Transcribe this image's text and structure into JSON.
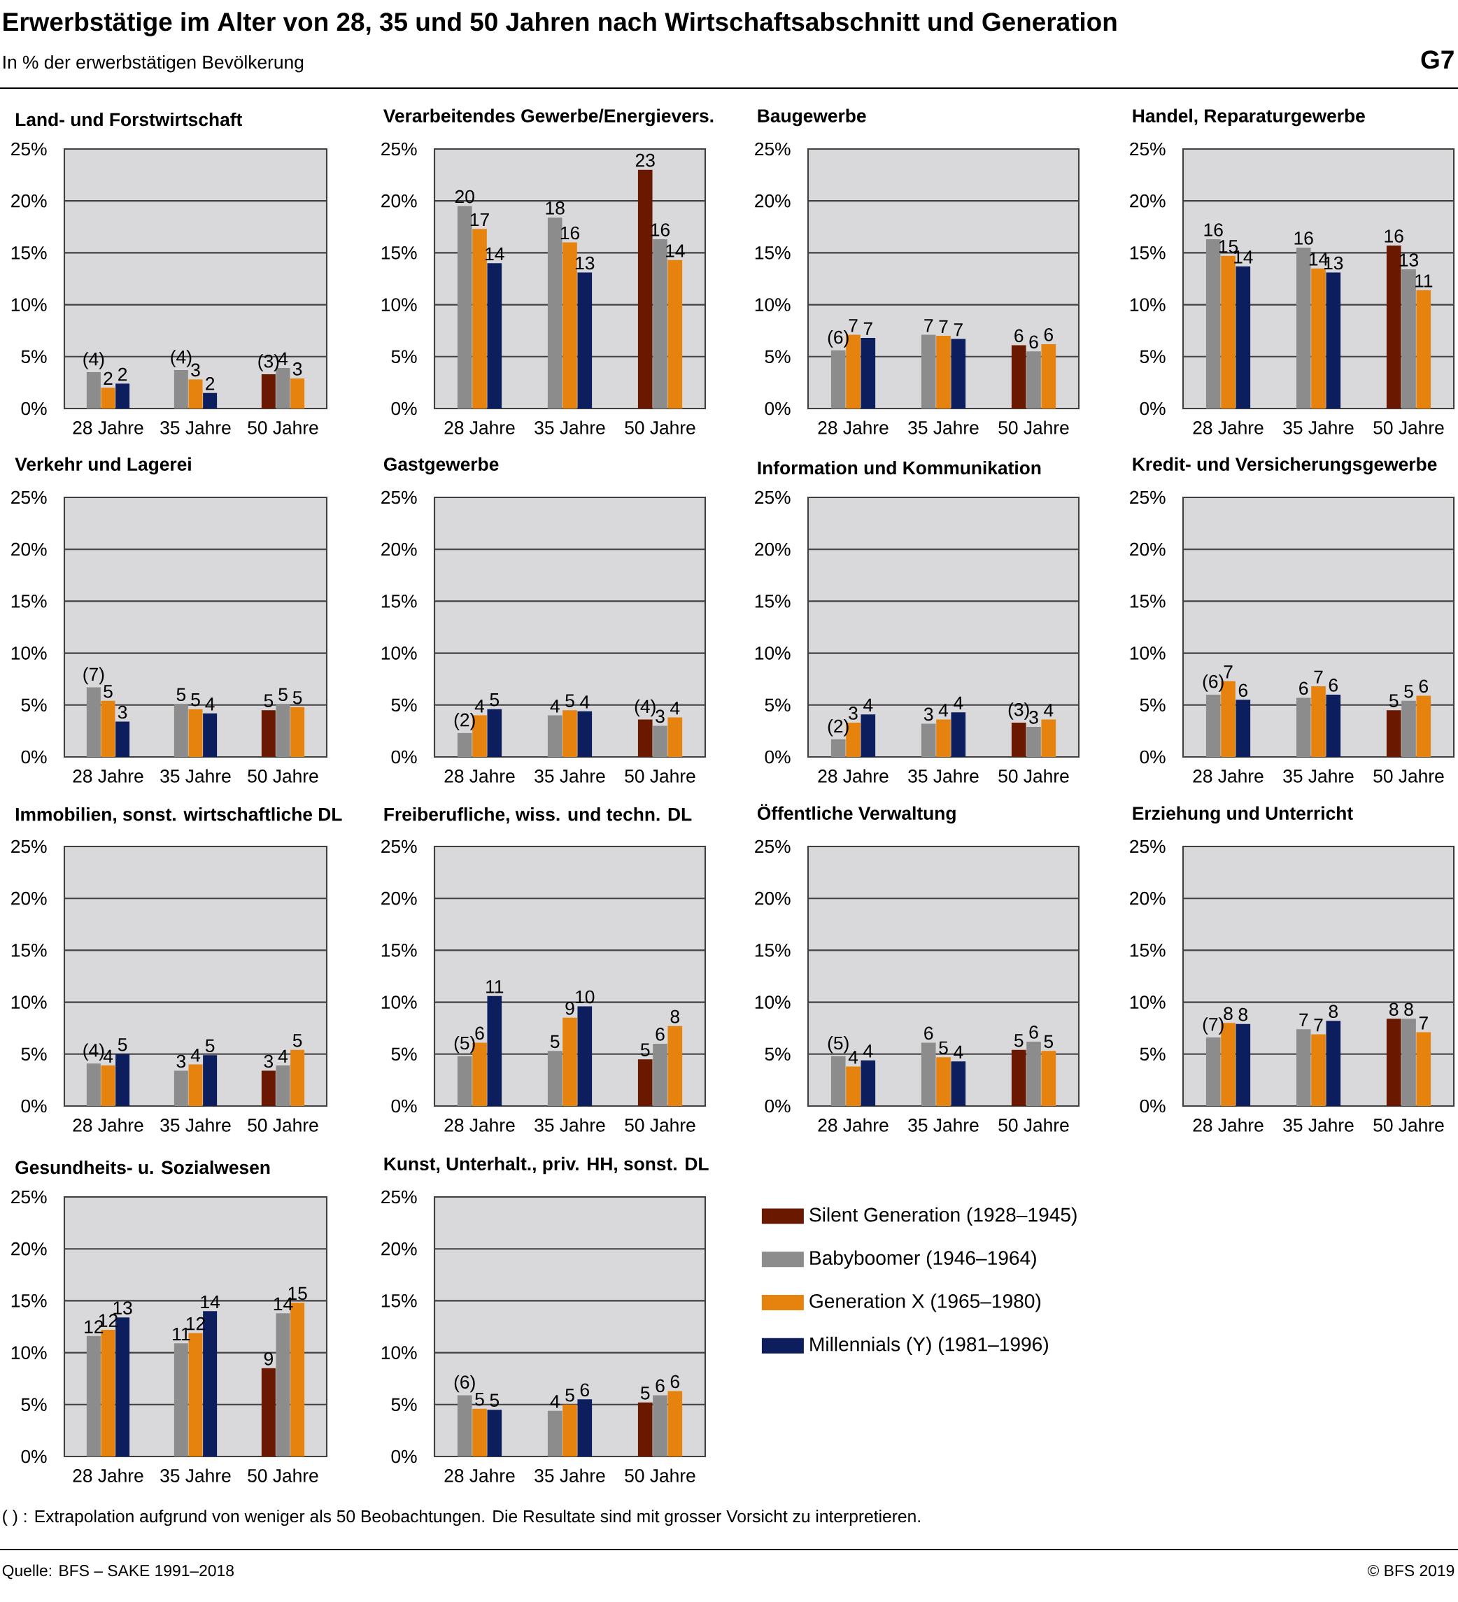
{
  "chart_data": [
    {
      "type": "other",
      "title": "Erwerbstätige im Alter von 28, 35 und 50 Jahren nach Wirtschaftsabschnitt und Generation",
      "subtitle": "In % der erwerbstätigen Bevölkerung",
      "annotations": [
        "G7",
        "( ) : Extrapolation aufgrund von weniger als 50 Beobachtungen. Die Resultate sind mit grosser Vorsicht zu interpretieren.",
        "Quelle: BFS – SAKE 1991–2018",
        "© BFS 2019"
      ]
    },
    {
      "type": "bar",
      "title": "Land- und Forstwirtschaft",
      "categories": [
        "28 Jahre",
        "35 Jahre",
        "50 Jahre"
      ],
      "ylim": [
        0,
        25
      ],
      "yticks": [
        {
          "value": 0,
          "label": "0%"
        },
        {
          "value": 5,
          "label": "5%"
        },
        {
          "value": 10,
          "label": "10%"
        },
        {
          "value": 15,
          "label": "15%"
        },
        {
          "value": 20,
          "label": "20%"
        },
        {
          "value": 25,
          "label": "25%"
        }
      ],
      "grid": "y",
      "series": [
        {
          "color": "#6b1800",
          "values": [
            null,
            null,
            3.3
          ],
          "value_labels": [
            null,
            null,
            "(3)"
          ]
        },
        {
          "color": "#8c8c8c",
          "values": [
            3.5,
            3.7,
            3.9
          ],
          "value_labels": [
            "(4)",
            "(4)",
            "4"
          ]
        },
        {
          "color": "#e6820e",
          "values": [
            2.0,
            2.8,
            2.9
          ],
          "value_labels": [
            "2",
            "3",
            "3"
          ]
        },
        {
          "color": "#0c1e5e",
          "values": [
            2.4,
            1.5,
            null
          ],
          "value_labels": [
            "2",
            "2",
            null
          ]
        }
      ]
    },
    {
      "type": "bar",
      "title": "Verarbeitendes Gewerbe/Energievers.",
      "categories": [
        "28 Jahre",
        "35 Jahre",
        "50 Jahre"
      ],
      "ylim": [
        0,
        25
      ],
      "yticks": [
        {
          "value": 0,
          "label": "0%"
        },
        {
          "value": 5,
          "label": "5%"
        },
        {
          "value": 10,
          "label": "10%"
        },
        {
          "value": 15,
          "label": "15%"
        },
        {
          "value": 20,
          "label": "20%"
        },
        {
          "value": 25,
          "label": "25%"
        }
      ],
      "grid": "y",
      "series": [
        {
          "color": "#6b1800",
          "values": [
            null,
            null,
            23.0
          ],
          "value_labels": [
            null,
            null,
            "23"
          ]
        },
        {
          "color": "#8c8c8c",
          "values": [
            19.5,
            18.4,
            16.3
          ],
          "value_labels": [
            "20",
            "18",
            "16"
          ]
        },
        {
          "color": "#e6820e",
          "values": [
            17.3,
            16.0,
            14.3
          ],
          "value_labels": [
            "17",
            "16",
            "14"
          ]
        },
        {
          "color": "#0c1e5e",
          "values": [
            14.0,
            13.1,
            null
          ],
          "value_labels": [
            "14",
            "13",
            null
          ]
        }
      ]
    },
    {
      "type": "bar",
      "title": "Baugewerbe",
      "categories": [
        "28 Jahre",
        "35 Jahre",
        "50 Jahre"
      ],
      "ylim": [
        0,
        25
      ],
      "yticks": [
        {
          "value": 0,
          "label": "0%"
        },
        {
          "value": 5,
          "label": "5%"
        },
        {
          "value": 10,
          "label": "10%"
        },
        {
          "value": 15,
          "label": "15%"
        },
        {
          "value": 20,
          "label": "20%"
        },
        {
          "value": 25,
          "label": "25%"
        }
      ],
      "grid": "y",
      "series": [
        {
          "color": "#6b1800",
          "values": [
            null,
            null,
            6.1
          ],
          "value_labels": [
            null,
            null,
            "6"
          ]
        },
        {
          "color": "#8c8c8c",
          "values": [
            5.6,
            7.1,
            5.5
          ],
          "value_labels": [
            "(6)",
            "7",
            "6"
          ]
        },
        {
          "color": "#e6820e",
          "values": [
            7.1,
            7.0,
            6.2
          ],
          "value_labels": [
            "7",
            "7",
            "6"
          ]
        },
        {
          "color": "#0c1e5e",
          "values": [
            6.8,
            6.7,
            null
          ],
          "value_labels": [
            "7",
            "7",
            null
          ]
        }
      ]
    },
    {
      "type": "bar",
      "title": "Handel, Reparaturgewerbe",
      "categories": [
        "28 Jahre",
        "35 Jahre",
        "50 Jahre"
      ],
      "ylim": [
        0,
        25
      ],
      "yticks": [
        {
          "value": 0,
          "label": "0%"
        },
        {
          "value": 5,
          "label": "5%"
        },
        {
          "value": 10,
          "label": "10%"
        },
        {
          "value": 15,
          "label": "15%"
        },
        {
          "value": 20,
          "label": "20%"
        },
        {
          "value": 25,
          "label": "25%"
        }
      ],
      "grid": "y",
      "series": [
        {
          "color": "#6b1800",
          "values": [
            null,
            null,
            15.7
          ],
          "value_labels": [
            null,
            null,
            "16"
          ]
        },
        {
          "color": "#8c8c8c",
          "values": [
            16.3,
            15.5,
            13.4
          ],
          "value_labels": [
            "16",
            "16",
            "13"
          ]
        },
        {
          "color": "#e6820e",
          "values": [
            14.7,
            13.5,
            11.4
          ],
          "value_labels": [
            "15",
            "14",
            "11"
          ]
        },
        {
          "color": "#0c1e5e",
          "values": [
            13.7,
            13.1,
            null
          ],
          "value_labels": [
            "14",
            "13",
            null
          ]
        }
      ]
    },
    {
      "type": "bar",
      "title": "Verkehr und Lagerei",
      "categories": [
        "28 Jahre",
        "35 Jahre",
        "50 Jahre"
      ],
      "ylim": [
        0,
        25
      ],
      "yticks": [
        {
          "value": 0,
          "label": "0%"
        },
        {
          "value": 5,
          "label": "5%"
        },
        {
          "value": 10,
          "label": "10%"
        },
        {
          "value": 15,
          "label": "15%"
        },
        {
          "value": 20,
          "label": "20%"
        },
        {
          "value": 25,
          "label": "25%"
        }
      ],
      "grid": "y",
      "series": [
        {
          "color": "#6b1800",
          "values": [
            null,
            null,
            4.5
          ],
          "value_labels": [
            null,
            null,
            "5"
          ]
        },
        {
          "color": "#8c8c8c",
          "values": [
            6.7,
            5.1,
            5.1
          ],
          "value_labels": [
            "(7)",
            "5",
            "5"
          ]
        },
        {
          "color": "#e6820e",
          "values": [
            5.4,
            4.6,
            4.8
          ],
          "value_labels": [
            "5",
            "5",
            "5"
          ]
        },
        {
          "color": "#0c1e5e",
          "values": [
            3.4,
            4.2,
            null
          ],
          "value_labels": [
            "3",
            "4",
            null
          ]
        }
      ]
    },
    {
      "type": "bar",
      "title": "Gastgewerbe",
      "categories": [
        "28 Jahre",
        "35 Jahre",
        "50 Jahre"
      ],
      "ylim": [
        0,
        25
      ],
      "yticks": [
        {
          "value": 0,
          "label": "0%"
        },
        {
          "value": 5,
          "label": "5%"
        },
        {
          "value": 10,
          "label": "10%"
        },
        {
          "value": 15,
          "label": "15%"
        },
        {
          "value": 20,
          "label": "20%"
        },
        {
          "value": 25,
          "label": "25%"
        }
      ],
      "grid": "y",
      "series": [
        {
          "color": "#6b1800",
          "values": [
            null,
            null,
            3.6
          ],
          "value_labels": [
            null,
            null,
            "(4)"
          ]
        },
        {
          "color": "#8c8c8c",
          "values": [
            2.3,
            4.0,
            3.0
          ],
          "value_labels": [
            "(2)",
            "4",
            "3"
          ]
        },
        {
          "color": "#e6820e",
          "values": [
            4.0,
            4.5,
            3.8
          ],
          "value_labels": [
            "4",
            "5",
            "4"
          ]
        },
        {
          "color": "#0c1e5e",
          "values": [
            4.6,
            4.4,
            null
          ],
          "value_labels": [
            "5",
            "4",
            null
          ]
        }
      ]
    },
    {
      "type": "bar",
      "title": "Information und Kommunikation",
      "categories": [
        "28 Jahre",
        "35 Jahre",
        "50 Jahre"
      ],
      "ylim": [
        0,
        25
      ],
      "yticks": [
        {
          "value": 0,
          "label": "0%"
        },
        {
          "value": 5,
          "label": "5%"
        },
        {
          "value": 10,
          "label": "10%"
        },
        {
          "value": 15,
          "label": "15%"
        },
        {
          "value": 20,
          "label": "20%"
        },
        {
          "value": 25,
          "label": "25%"
        }
      ],
      "grid": "y",
      "series": [
        {
          "color": "#6b1800",
          "values": [
            null,
            null,
            3.3
          ],
          "value_labels": [
            null,
            null,
            "(3)"
          ]
        },
        {
          "color": "#8c8c8c",
          "values": [
            1.7,
            3.2,
            2.9
          ],
          "value_labels": [
            "(2)",
            "3",
            "3"
          ]
        },
        {
          "color": "#e6820e",
          "values": [
            3.3,
            3.6,
            3.6
          ],
          "value_labels": [
            "3",
            "4",
            "4"
          ]
        },
        {
          "color": "#0c1e5e",
          "values": [
            4.1,
            4.3,
            null
          ],
          "value_labels": [
            "4",
            "4",
            null
          ]
        }
      ]
    },
    {
      "type": "bar",
      "title": "Kredit- und Versicherungsgewerbe",
      "categories": [
        "28 Jahre",
        "35 Jahre",
        "50 Jahre"
      ],
      "ylim": [
        0,
        25
      ],
      "yticks": [
        {
          "value": 0,
          "label": "0%"
        },
        {
          "value": 5,
          "label": "5%"
        },
        {
          "value": 10,
          "label": "10%"
        },
        {
          "value": 15,
          "label": "15%"
        },
        {
          "value": 20,
          "label": "20%"
        },
        {
          "value": 25,
          "label": "25%"
        }
      ],
      "grid": "y",
      "series": [
        {
          "color": "#6b1800",
          "values": [
            null,
            null,
            4.5
          ],
          "value_labels": [
            null,
            null,
            "5"
          ]
        },
        {
          "color": "#8c8c8c",
          "values": [
            6.0,
            5.7,
            5.4
          ],
          "value_labels": [
            "(6)",
            "6",
            "5"
          ]
        },
        {
          "color": "#e6820e",
          "values": [
            7.3,
            6.8,
            5.9
          ],
          "value_labels": [
            "7",
            "7",
            "6"
          ]
        },
        {
          "color": "#0c1e5e",
          "values": [
            5.5,
            6.0,
            null
          ],
          "value_labels": [
            "6",
            "6",
            null
          ]
        }
      ]
    },
    {
      "type": "bar",
      "title": "Immobilien, sonst. wirtschaftliche DL",
      "categories": [
        "28 Jahre",
        "35 Jahre",
        "50 Jahre"
      ],
      "ylim": [
        0,
        25
      ],
      "yticks": [
        {
          "value": 0,
          "label": "0%"
        },
        {
          "value": 5,
          "label": "5%"
        },
        {
          "value": 10,
          "label": "10%"
        },
        {
          "value": 15,
          "label": "15%"
        },
        {
          "value": 20,
          "label": "20%"
        },
        {
          "value": 25,
          "label": "25%"
        }
      ],
      "grid": "y",
      "series": [
        {
          "color": "#6b1800",
          "values": [
            null,
            null,
            3.4
          ],
          "value_labels": [
            null,
            null,
            "3"
          ]
        },
        {
          "color": "#8c8c8c",
          "values": [
            4.1,
            3.4,
            3.9
          ],
          "value_labels": [
            "(4)",
            "3",
            "4"
          ]
        },
        {
          "color": "#e6820e",
          "values": [
            3.9,
            4.0,
            5.4
          ],
          "value_labels": [
            "4",
            "4",
            "5"
          ]
        },
        {
          "color": "#0c1e5e",
          "values": [
            5.0,
            4.9,
            null
          ],
          "value_labels": [
            "5",
            "5",
            null
          ]
        }
      ]
    },
    {
      "type": "bar",
      "title": "Freiberufliche, wiss. und techn. DL",
      "categories": [
        "28 Jahre",
        "35 Jahre",
        "50 Jahre"
      ],
      "ylim": [
        0,
        25
      ],
      "yticks": [
        {
          "value": 0,
          "label": "0%"
        },
        {
          "value": 5,
          "label": "5%"
        },
        {
          "value": 10,
          "label": "10%"
        },
        {
          "value": 15,
          "label": "15%"
        },
        {
          "value": 20,
          "label": "20%"
        },
        {
          "value": 25,
          "label": "25%"
        }
      ],
      "grid": "y",
      "series": [
        {
          "color": "#6b1800",
          "values": [
            null,
            null,
            4.5
          ],
          "value_labels": [
            null,
            null,
            "5"
          ]
        },
        {
          "color": "#8c8c8c",
          "values": [
            4.8,
            5.3,
            6.0
          ],
          "value_labels": [
            "(5)",
            "5",
            "6"
          ]
        },
        {
          "color": "#e6820e",
          "values": [
            6.1,
            8.5,
            7.7
          ],
          "value_labels": [
            "6",
            "9",
            "8"
          ]
        },
        {
          "color": "#0c1e5e",
          "values": [
            10.6,
            9.6,
            null
          ],
          "value_labels": [
            "11",
            "10",
            null
          ]
        }
      ]
    },
    {
      "type": "bar",
      "title": "Öffentliche Verwaltung",
      "categories": [
        "28 Jahre",
        "35 Jahre",
        "50 Jahre"
      ],
      "ylim": [
        0,
        25
      ],
      "yticks": [
        {
          "value": 0,
          "label": "0%"
        },
        {
          "value": 5,
          "label": "5%"
        },
        {
          "value": 10,
          "label": "10%"
        },
        {
          "value": 15,
          "label": "15%"
        },
        {
          "value": 20,
          "label": "20%"
        },
        {
          "value": 25,
          "label": "25%"
        }
      ],
      "grid": "y",
      "series": [
        {
          "color": "#6b1800",
          "values": [
            null,
            null,
            5.4
          ],
          "value_labels": [
            null,
            null,
            "5"
          ]
        },
        {
          "color": "#8c8c8c",
          "values": [
            4.8,
            6.1,
            6.2
          ],
          "value_labels": [
            "(5)",
            "6",
            "6"
          ]
        },
        {
          "color": "#e6820e",
          "values": [
            3.8,
            4.7,
            5.3
          ],
          "value_labels": [
            "4",
            "5",
            "5"
          ]
        },
        {
          "color": "#0c1e5e",
          "values": [
            4.4,
            4.3,
            null
          ],
          "value_labels": [
            "4",
            "4",
            null
          ]
        }
      ]
    },
    {
      "type": "bar",
      "title": "Erziehung und Unterricht",
      "categories": [
        "28 Jahre",
        "35 Jahre",
        "50 Jahre"
      ],
      "ylim": [
        0,
        25
      ],
      "yticks": [
        {
          "value": 0,
          "label": "0%"
        },
        {
          "value": 5,
          "label": "5%"
        },
        {
          "value": 10,
          "label": "10%"
        },
        {
          "value": 15,
          "label": "15%"
        },
        {
          "value": 20,
          "label": "20%"
        },
        {
          "value": 25,
          "label": "25%"
        }
      ],
      "grid": "y",
      "series": [
        {
          "color": "#6b1800",
          "values": [
            null,
            null,
            8.4
          ],
          "value_labels": [
            null,
            null,
            "8"
          ]
        },
        {
          "color": "#8c8c8c",
          "values": [
            6.6,
            7.4,
            8.4
          ],
          "value_labels": [
            "(7)",
            "7",
            "8"
          ]
        },
        {
          "color": "#e6820e",
          "values": [
            8.0,
            6.9,
            7.1
          ],
          "value_labels": [
            "8",
            "7",
            "7"
          ]
        },
        {
          "color": "#0c1e5e",
          "values": [
            7.9,
            8.2,
            null
          ],
          "value_labels": [
            "8",
            "8",
            null
          ]
        }
      ]
    },
    {
      "type": "bar",
      "title": "Gesundheits- u. Sozialwesen",
      "categories": [
        "28 Jahre",
        "35 Jahre",
        "50 Jahre"
      ],
      "ylim": [
        0,
        25
      ],
      "yticks": [
        {
          "value": 0,
          "label": "0%"
        },
        {
          "value": 5,
          "label": "5%"
        },
        {
          "value": 10,
          "label": "10%"
        },
        {
          "value": 15,
          "label": "15%"
        },
        {
          "value": 20,
          "label": "20%"
        },
        {
          "value": 25,
          "label": "25%"
        }
      ],
      "grid": "y",
      "series": [
        {
          "color": "#6b1800",
          "values": [
            null,
            null,
            8.5
          ],
          "value_labels": [
            null,
            null,
            "9"
          ]
        },
        {
          "color": "#8c8c8c",
          "values": [
            11.6,
            10.9,
            13.8
          ],
          "value_labels": [
            "12",
            "11",
            "14"
          ]
        },
        {
          "color": "#e6820e",
          "values": [
            12.2,
            11.9,
            14.8
          ],
          "value_labels": [
            "12",
            "12",
            "15"
          ]
        },
        {
          "color": "#0c1e5e",
          "values": [
            13.4,
            14.0,
            null
          ],
          "value_labels": [
            "13",
            "14",
            null
          ]
        }
      ]
    },
    {
      "type": "bar",
      "title": "Kunst, Unterhalt., priv. HH, sonst. DL",
      "categories": [
        "28 Jahre",
        "35 Jahre",
        "50 Jahre"
      ],
      "ylim": [
        0,
        25
      ],
      "yticks": [
        {
          "value": 0,
          "label": "0%"
        },
        {
          "value": 5,
          "label": "5%"
        },
        {
          "value": 10,
          "label": "10%"
        },
        {
          "value": 15,
          "label": "15%"
        },
        {
          "value": 20,
          "label": "20%"
        },
        {
          "value": 25,
          "label": "25%"
        }
      ],
      "grid": "y",
      "legend": "right",
      "series": [
        {
          "name": "Silent Generation (1928–1945)",
          "color": "#6b1800",
          "values": [
            null,
            null,
            5.2
          ],
          "value_labels": [
            null,
            null,
            "5"
          ]
        },
        {
          "name": "Babyboomer (1946–1964)",
          "color": "#8c8c8c",
          "values": [
            5.9,
            4.4,
            5.9
          ],
          "value_labels": [
            "(6)",
            "4",
            "6"
          ]
        },
        {
          "name": "Generation X (1965–1980)",
          "color": "#e6820e",
          "values": [
            4.6,
            5.0,
            6.3
          ],
          "value_labels": [
            "5",
            "5",
            "6"
          ]
        },
        {
          "name": "Millennials (Y) (1981–1996)",
          "color": "#0c1e5e",
          "values": [
            4.5,
            5.5,
            null
          ],
          "value_labels": [
            "5",
            "6",
            null
          ]
        }
      ]
    }
  ]
}
